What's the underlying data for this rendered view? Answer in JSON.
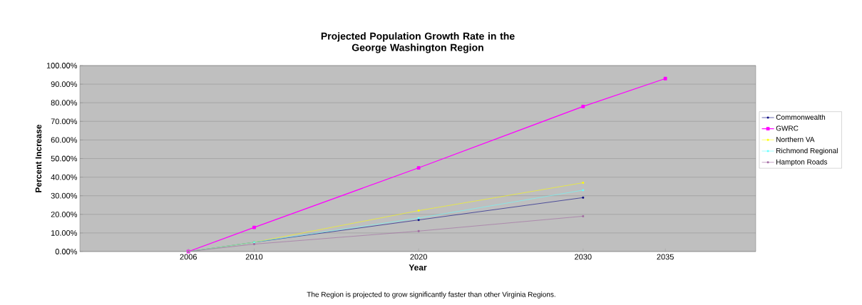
{
  "chart_data": {
    "type": "line",
    "title": "Projected Population Growth Rate in the\nGeorge Washington Region",
    "xlabel": "Year",
    "ylabel": "Percent Increase",
    "x": [
      2006,
      2010,
      2020,
      2030,
      2035
    ],
    "series": [
      {
        "name": "Commonwealth",
        "color": "#000080",
        "values": [
          0,
          5,
          17,
          29,
          null
        ]
      },
      {
        "name": "GWRC",
        "color": "#ff00ff",
        "values": [
          0,
          13,
          45,
          78,
          93
        ]
      },
      {
        "name": "Northern VA",
        "color": "#ffff00",
        "values": [
          0,
          5,
          22,
          37,
          null
        ]
      },
      {
        "name": "Richmond Regional",
        "color": "#66ffff",
        "values": [
          0,
          5,
          18,
          33,
          null
        ]
      },
      {
        "name": "Hampton Roads",
        "color": "#a066a0",
        "values": [
          0,
          4,
          11,
          19,
          null
        ]
      }
    ],
    "xlim": [
      1999.4,
      2040.5
    ],
    "xticks": [
      2006,
      2010,
      2020,
      2030,
      2035
    ],
    "ylim": [
      0,
      100
    ],
    "yticks": [
      {
        "value": 0,
        "label": "0.00%"
      },
      {
        "value": 10,
        "label": "10.00%"
      },
      {
        "value": 20,
        "label": "20.00%"
      },
      {
        "value": 30,
        "label": "30.00%"
      },
      {
        "value": 40,
        "label": "40.00%"
      },
      {
        "value": 50,
        "label": "50.00%"
      },
      {
        "value": 60,
        "label": "60.00%"
      },
      {
        "value": 70,
        "label": "70.00%"
      },
      {
        "value": 80,
        "label": "80.00%"
      },
      {
        "value": 90,
        "label": "90.00%"
      },
      {
        "value": 100,
        "label": "100.00%"
      }
    ],
    "grid": "y",
    "legend": "right",
    "marker": "square",
    "annotations": [
      "The Region is projected to grow significantly faster than other Virginia Regions."
    ]
  }
}
